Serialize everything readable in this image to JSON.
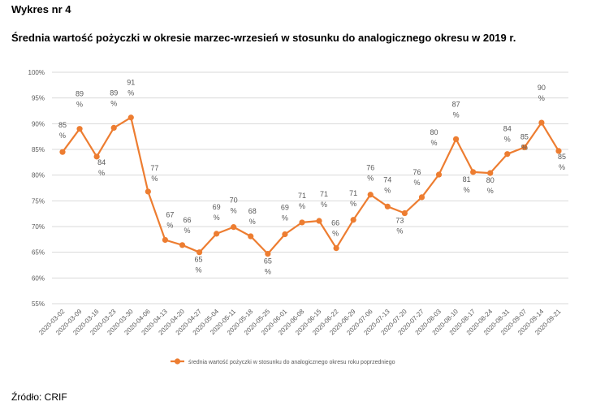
{
  "figure_label": "Wykres nr 4",
  "source": "Źródło: CRIF",
  "colors": {
    "series": "#ED7D31",
    "grid": "#d9d9d9",
    "text": "#595959"
  },
  "chart_data": {
    "type": "line",
    "title": "Średnia wartość pożyczki w okresie marzec-wrzesień w stosunku do analogicznego okresu w 2019 r.",
    "xlabel": "",
    "ylabel": "",
    "ylim": [
      55,
      100
    ],
    "y_ticks": [
      "55%",
      "60%",
      "65%",
      "70%",
      "75%",
      "80%",
      "85%",
      "90%",
      "95%",
      "100%"
    ],
    "grid": true,
    "legend_position": "bottom",
    "categories": [
      "2020-03-02",
      "2020-03-09",
      "2020-03-16",
      "2020-03-23",
      "2020-03-30",
      "2020-04-06",
      "2020-04-13",
      "2020-04-20",
      "2020-04-27",
      "2020-05-04",
      "2020-05-11",
      "2020-05-18",
      "2020-05-25",
      "2020-06-01",
      "2020-06-08",
      "2020-06-15",
      "2020-06-22",
      "2020-06-29",
      "2020-07-06",
      "2020-07-13",
      "2020-07-20",
      "2020-07-27",
      "2020-08-03",
      "2020-08-10",
      "2020-08-17",
      "2020-08-24",
      "2020-08-31",
      "2020-09-07",
      "2020-09-14",
      "2020-09-21"
    ],
    "series": [
      {
        "name": "średnia wartość pożyczki w stosunku do analogicznego okresu roku poprzedniego",
        "values": [
          84.5,
          89,
          83.6,
          89.2,
          91.2,
          76.8,
          67.4,
          66.4,
          65.0,
          68.6,
          69.9,
          68.1,
          64.7,
          68.5,
          70.8,
          71.1,
          65.8,
          71.3,
          76.2,
          73.9,
          72.6,
          75.7,
          80.1,
          87,
          80.6,
          80.4,
          84.1,
          85.4,
          90.2,
          84.7
        ],
        "labels": [
          "85\n%",
          "89\n%",
          "84\n%",
          "89\n%",
          "91\n%",
          "77\n%",
          "67\n%",
          "66\n%",
          "65\n%",
          "69\n%",
          "70\n%",
          "68\n%",
          "65\n%",
          "69\n%",
          "71\n%",
          "71\n%",
          "66\n%",
          "71\n%",
          "76\n%",
          "74\n%",
          "73\n%",
          "76\n%",
          "80\n%",
          "87\n%",
          "81\n%",
          "80\n%",
          "84\n%",
          "85\n%",
          "90\n%",
          "85\n%"
        ]
      }
    ]
  }
}
